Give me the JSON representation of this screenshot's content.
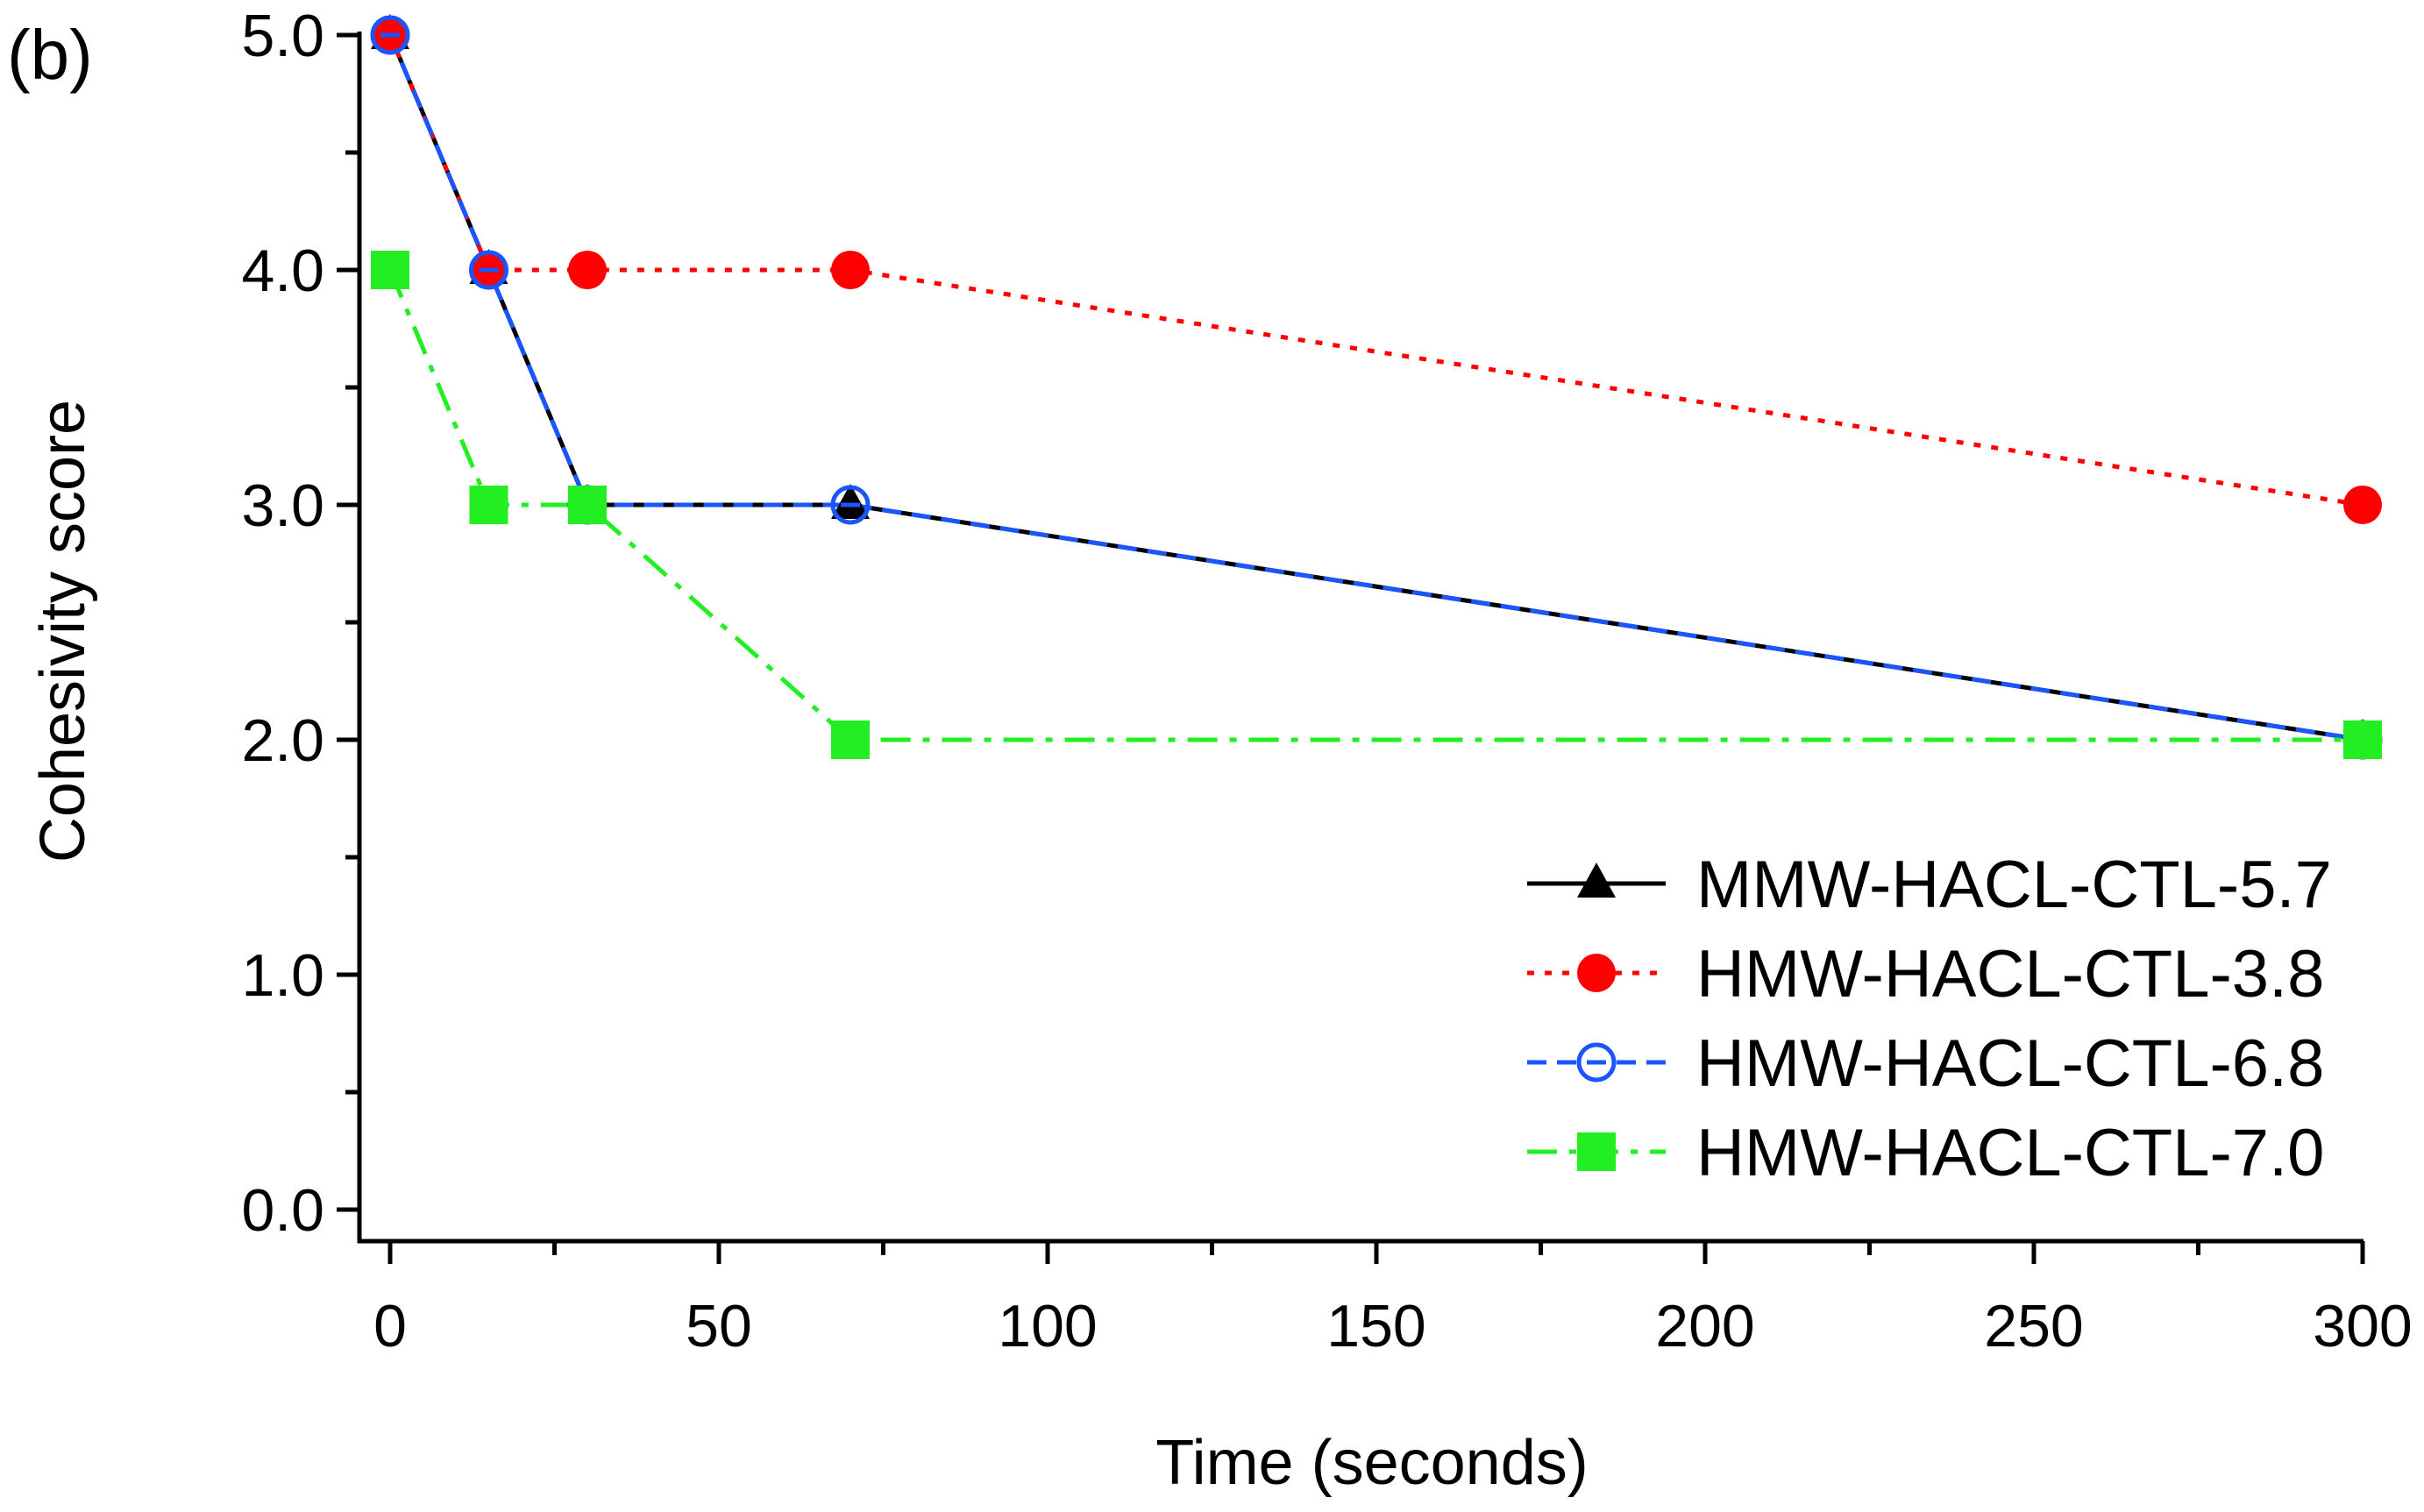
{
  "chart_data": {
    "type": "line",
    "panel_label": "(b)",
    "title": "",
    "xlabel": "Time (seconds)",
    "ylabel": "Cohesivity score",
    "xlim": [
      -5,
      300
    ],
    "ylim": [
      -0.13,
      5.0
    ],
    "xticks": [
      0,
      50,
      100,
      150,
      200,
      250,
      300
    ],
    "xtick_labels": [
      "0",
      "50",
      "100",
      "150",
      "200",
      "250",
      "300"
    ],
    "yticks": [
      0,
      1,
      2,
      3,
      4,
      5
    ],
    "ytick_labels": [
      "0.0",
      "1.0",
      "2.0",
      "3.0",
      "4.0",
      "5.0"
    ],
    "yminor_ticks": [
      0.5,
      1.5,
      2.5,
      3.5,
      4.5
    ],
    "xminor_ticks": [
      25,
      75,
      125,
      175,
      225,
      275
    ],
    "grid": false,
    "legend_position": "bottom-right",
    "x": [
      0,
      15,
      30,
      70,
      300
    ],
    "series": [
      {
        "name": "MMW-HACL-CTL-5.7",
        "values": [
          5,
          4,
          3,
          3,
          2
        ],
        "color": "#000000",
        "marker": "triangle",
        "line_style": "solid"
      },
      {
        "name": "HMW-HACL-CTL-3.8",
        "values": [
          5,
          4,
          4,
          4,
          3
        ],
        "color": "#ff0000",
        "marker": "circle",
        "line_style": "dotted"
      },
      {
        "name": "HMW-HACL-CTL-6.8",
        "values": [
          5,
          4,
          3,
          3,
          2
        ],
        "color": "#1a55ff",
        "marker": "circle-open-dash",
        "line_style": "dashed"
      },
      {
        "name": "HMW-HACL-CTL-7.0",
        "values": [
          4,
          3,
          3,
          2,
          2
        ],
        "color": "#22ee22",
        "marker": "square",
        "line_style": "dash-dot"
      }
    ]
  }
}
